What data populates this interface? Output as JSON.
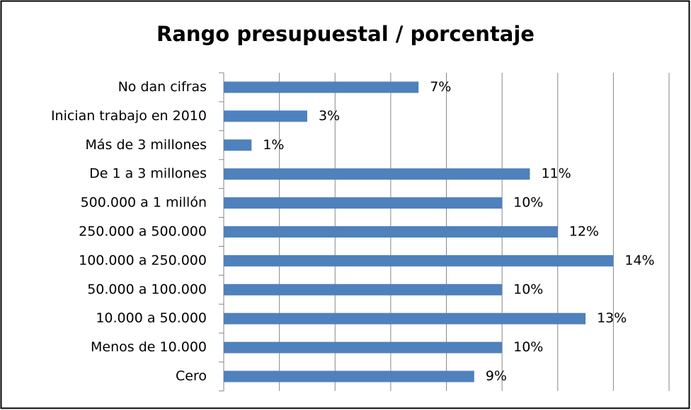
{
  "chart_data": {
    "type": "bar",
    "orientation": "horizontal",
    "title": "Rango presupuestal / porcentaje",
    "categories": [
      "No dan cifras",
      "Inician trabajo en 2010",
      "Más de 3 millones",
      "De 1 a 3 millones",
      "500.000 a 1 millón",
      "250.000 a 500.000",
      "100.000 a 250.000",
      "50.000 a 100.000",
      "10.000 a 50.000",
      "Menos de 10.000",
      "Cero"
    ],
    "values": [
      7,
      3,
      1,
      11,
      10,
      12,
      14,
      10,
      13,
      10,
      9
    ],
    "value_labels": [
      "7%",
      "3%",
      "1%",
      "11%",
      "10%",
      "12%",
      "14%",
      "10%",
      "13%",
      "10%",
      "9%"
    ],
    "color": "#4f81bd",
    "xlim": [
      0,
      16
    ],
    "xticks": [
      0,
      2,
      4,
      6,
      8,
      10,
      12,
      14,
      16
    ],
    "grid": true
  }
}
